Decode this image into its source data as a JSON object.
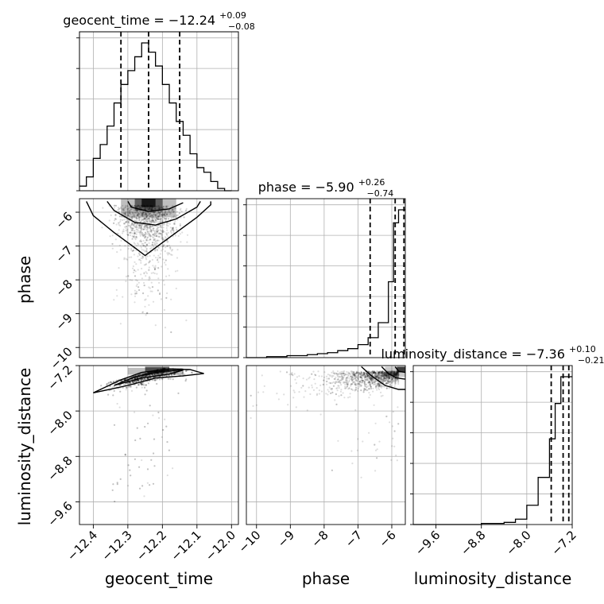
{
  "chart_data": {
    "type": "corner",
    "parameters": [
      "geocent_time",
      "phase",
      "luminosity_distance"
    ],
    "titles": [
      {
        "label": "geocent_time = −12.24",
        "sup": "+0.09",
        "sub": "−0.08"
      },
      {
        "label": "phase = −5.90",
        "sup": "+0.26",
        "sub": "−0.74"
      },
      {
        "label": "luminosity_distance = −7.36",
        "sup": "+0.10",
        "sub": "−0.21"
      }
    ],
    "axis_labels": {
      "x": [
        "geocent_time",
        "phase",
        "luminosity_distance"
      ],
      "y": [
        "phase",
        "luminosity_distance"
      ]
    },
    "ranges": {
      "geocent_time": [
        -12.44,
        -11.98
      ],
      "phase": [
        -10.3,
        -5.6
      ],
      "luminosity_distance": [
        -10.0,
        -7.2
      ]
    },
    "ticks": {
      "geocent_time": {
        "values": [
          -12.4,
          -12.3,
          -12.2,
          -12.1,
          -12.0
        ],
        "labels": [
          "−12.4",
          "−12.3",
          "−12.2",
          "−12.1",
          "−12.0"
        ]
      },
      "phase": {
        "values": [
          -10,
          -9,
          -8,
          -7,
          -6
        ],
        "labels": [
          "−10",
          "−9",
          "−8",
          "−7",
          "−6"
        ]
      },
      "luminosity_distance": {
        "values": [
          -9.6,
          -8.8,
          -8.0,
          -7.2
        ],
        "labels": [
          "−9.6",
          "−8.8",
          "−8.0",
          "−7.2"
        ]
      }
    },
    "quantiles": {
      "geocent_time": [
        -12.32,
        -12.24,
        -12.15
      ],
      "phase": [
        -6.64,
        -5.9,
        -5.64
      ],
      "luminosity_distance": [
        -7.57,
        -7.36,
        -7.26
      ]
    },
    "histograms": {
      "geocent_time": {
        "edges": [
          -12.44,
          -12.42,
          -12.4,
          -12.38,
          -12.36,
          -12.34,
          -12.32,
          -12.3,
          -12.28,
          -12.26,
          -12.24,
          -12.22,
          -12.2,
          -12.18,
          -12.16,
          -12.14,
          -12.12,
          -12.1,
          -12.08,
          -12.06,
          -12.04,
          -12.02,
          -12.0
        ],
        "counts": [
          2,
          6,
          14,
          20,
          28,
          38,
          46,
          52,
          58,
          64,
          60,
          54,
          46,
          38,
          30,
          24,
          16,
          10,
          8,
          4,
          1,
          0
        ]
      },
      "phase": {
        "edges": [
          -10.3,
          -10.0,
          -9.7,
          -9.4,
          -9.1,
          -8.8,
          -8.5,
          -8.2,
          -7.9,
          -7.6,
          -7.3,
          -7.0,
          -6.7,
          -6.4,
          -6.1,
          -5.95,
          -5.8,
          -5.6
        ],
        "counts": [
          0,
          0,
          1,
          1,
          2,
          2,
          3,
          4,
          5,
          7,
          9,
          13,
          20,
          35,
          76,
          135,
          148
        ]
      },
      "luminosity_distance": {
        "edges": [
          -10.0,
          -8.8,
          -8.4,
          -8.2,
          -8.0,
          -7.8,
          -7.6,
          -7.5,
          -7.4,
          -7.3,
          -7.2
        ],
        "counts": [
          0,
          1,
          2,
          5,
          18,
          44,
          80,
          113,
          138,
          138
        ]
      }
    },
    "grid": true
  }
}
